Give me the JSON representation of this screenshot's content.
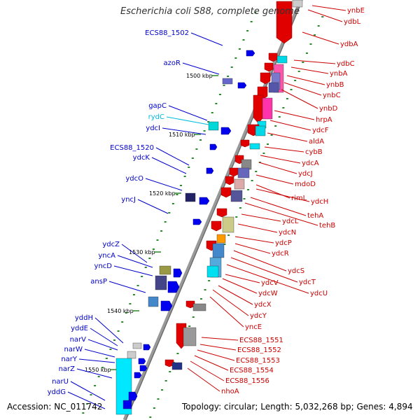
{
  "title": "Escherichia coli S88, complete genome",
  "footer": {
    "accession": "Accession: NC_011742",
    "topology": "Topology: circular; Length: 5,032,268 bp; Genes: 4,894"
  },
  "colors": {
    "left_label": "#0000cc",
    "right_label": "#cc0000",
    "rna_label": "#00bbdd",
    "backbone": "#999999",
    "tick": "#2a8a2a"
  },
  "scale_ticks": [
    "1500 kbp",
    "1510 kbp",
    "1520 kbp",
    "1530 kbp",
    "1540 kbp",
    "1550 kbp"
  ],
  "left_genes": [
    "ECS88_1502",
    "azoR",
    "gapC",
    "rydC",
    "ydcI",
    "ECS88_1520",
    "ydcK",
    "ydcO",
    "yncJ",
    "ydcZ",
    "yncA",
    "yncD",
    "ansP",
    "yddH",
    "yddE",
    "narV",
    "narW",
    "narY",
    "narZ",
    "narU",
    "yddG"
  ],
  "right_genes": [
    "ynbE",
    "ydbL",
    "ydbA",
    "ydbC",
    "ynbA",
    "ynbB",
    "ynbC",
    "ynbD",
    "hrpA",
    "ydcF",
    "aldA",
    "cybB",
    "ydcA",
    "ydcJ",
    "mdoD",
    "rimL",
    "ydcH",
    "tehA",
    "tehB",
    "ydcL",
    "ydcN",
    "ydcP",
    "ydcR",
    "ydcS",
    "ydcT",
    "ydcU",
    "ydcV",
    "ydcW",
    "ydcX",
    "ydcY",
    "yncE",
    "ECS88_1551",
    "ECS88_1552",
    "ECS88_1553",
    "ECS88_1554",
    "ECS88_1556",
    "nhoA"
  ]
}
